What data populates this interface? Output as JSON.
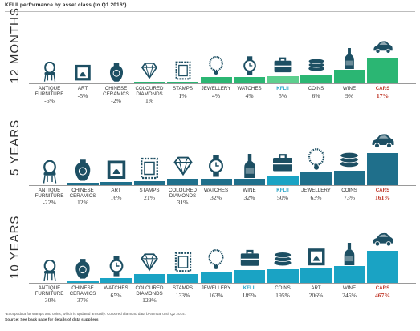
{
  "title": "KFLII performance by asset class (to Q1 2016*)",
  "footnote": "*Except data for stamps and coins, which is updated annually. Coloured diamond data bi-annual until Q2 2014.",
  "source": "Source: See back page for details of data suppliers",
  "chart_data": [
    {
      "type": "bar",
      "period": "12 MONTHS",
      "color": "#2bb673",
      "highlight_color": "#5dcf8e",
      "categories": [
        "ANTIQUE FURNITURE",
        "ART",
        "CHINESE CERAMICS",
        "COLOURED DIAMONDS",
        "STAMPS",
        "JEWELLERY",
        "WATCHES",
        "KFLII",
        "COINS",
        "WINE",
        "CARS"
      ],
      "value_labels": [
        "-6%",
        "-5%",
        "-2%",
        "1%",
        "1%",
        "4%",
        "4%",
        "5%",
        "6%",
        "9%",
        "17%"
      ],
      "values": [
        -6,
        -5,
        -2,
        1,
        1,
        4,
        4,
        5,
        6,
        9,
        17
      ],
      "icons": [
        "chair-icon",
        "frame-icon",
        "vase-icon",
        "diamond-icon",
        "stamp-icon",
        "necklace-icon",
        "watch-icon",
        "briefcase-icon",
        "coins-icon",
        "wine-icon",
        "car-icon"
      ]
    },
    {
      "type": "bar",
      "period": "5 YEARS",
      "color": "#1f6f8b",
      "highlight_color": "#1aa3c4",
      "categories": [
        "ANTIQUE FURNITURE",
        "CHINESE CERAMICS",
        "ART",
        "STAMPS",
        "COLOURED DIAMONDS",
        "WATCHES",
        "WINE",
        "KFLII",
        "JEWELLERY",
        "COINS",
        "CARS"
      ],
      "value_labels": [
        "-22%",
        "12%",
        "16%",
        "21%",
        "31%",
        "32%",
        "32%",
        "50%",
        "63%",
        "73%",
        "161%"
      ],
      "values": [
        -22,
        12,
        16,
        21,
        31,
        32,
        32,
        50,
        63,
        73,
        161
      ],
      "icons": [
        "chair-icon",
        "vase-icon",
        "frame-icon",
        "stamp-icon",
        "diamond-icon",
        "watch-icon",
        "wine-icon",
        "briefcase-icon",
        "necklace-icon",
        "coins-icon",
        "car-icon"
      ]
    },
    {
      "type": "bar",
      "period": "10 YEARS",
      "color": "#1aa3c4",
      "highlight_color": "#1aa3c4",
      "categories": [
        "ANTIQUE FURNITURE",
        "CHINESE CERAMICS",
        "WATCHES",
        "COLOURED DIAMONDS",
        "STAMPS",
        "JEWELLERY",
        "KFLII",
        "COINS",
        "ART",
        "WINE",
        "CARS"
      ],
      "value_labels": [
        "-30%",
        "37%",
        "65%",
        "129%",
        "133%",
        "163%",
        "189%",
        "195%",
        "206%",
        "245%",
        "467%"
      ],
      "values": [
        -30,
        37,
        65,
        129,
        133,
        163,
        189,
        195,
        206,
        245,
        467
      ],
      "icons": [
        "chair-icon",
        "vase-icon",
        "watch-icon",
        "diamond-icon",
        "stamp-icon",
        "necklace-icon",
        "briefcase-icon",
        "coins-icon",
        "frame-icon",
        "wine-icon",
        "car-icon"
      ]
    }
  ]
}
